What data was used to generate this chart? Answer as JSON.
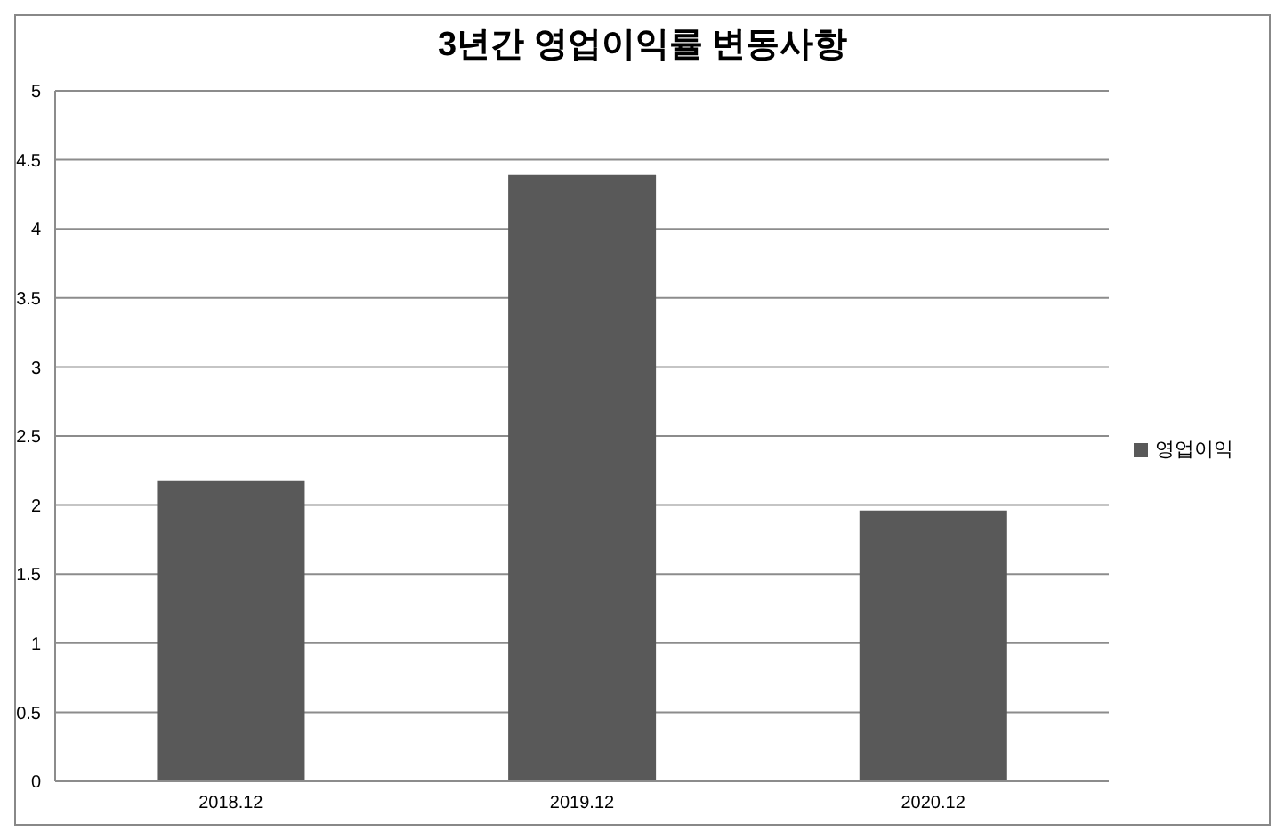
{
  "chart_data": {
    "type": "bar",
    "title": "3년간 영업이익률 변동사항",
    "categories": [
      "2018.12",
      "2019.12",
      "2020.12"
    ],
    "series": [
      {
        "name": "영업이익",
        "color": "#595959",
        "values": [
          2.18,
          4.39,
          1.96
        ]
      }
    ],
    "ylim": [
      0,
      5
    ],
    "yticks": [
      0,
      0.5,
      1,
      1.5,
      2,
      2.5,
      3,
      3.5,
      4,
      4.5,
      5
    ],
    "grid": "y",
    "legend": "right"
  }
}
